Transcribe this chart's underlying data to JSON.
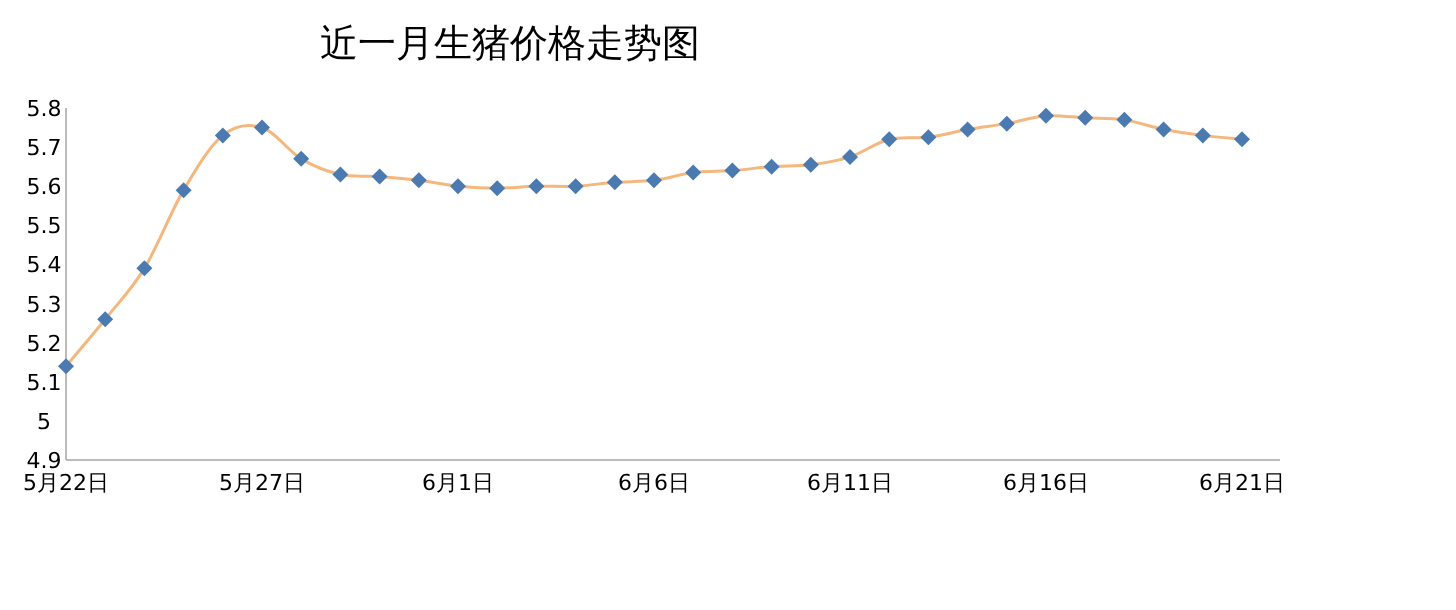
{
  "chart_data": {
    "type": "line",
    "title": "近一月生猪价格走势图",
    "categories": [
      "5月22日",
      null,
      null,
      null,
      null,
      "5月27日",
      null,
      null,
      null,
      null,
      "6月1日",
      null,
      null,
      null,
      null,
      "6月6日",
      null,
      null,
      null,
      null,
      "6月11日",
      null,
      null,
      null,
      null,
      "6月16日",
      null,
      null,
      null,
      null,
      "6月21日"
    ],
    "series": [
      {
        "color": "#f4b77e",
        "colors": [
          "#4a7ab0",
          "#4a7ab0",
          "#4a7ab0",
          "#4a7ab0",
          "#4a7ab0",
          "#4a7ab0",
          "#4a7ab0",
          "#4a7ab0",
          "#4a7ab0",
          "#4a7ab0",
          "#4a7ab0",
          "#4a7ab0",
          "#4a7ab0",
          "#4a7ab0",
          "#4a7ab0",
          "#4a7ab0",
          "#4a7ab0",
          "#4a7ab0",
          "#4a7ab0",
          "#4a7ab0",
          "#4a7ab0",
          "#4a7ab0",
          "#4a7ab0",
          "#4a7ab0",
          "#4a7ab0",
          "#4a7ab0",
          "#4a7ab0",
          "#4a7ab0",
          "#4a7ab0",
          "#4a7ab0",
          "#4a7ab0"
        ],
        "values": [
          5.14,
          5.26,
          5.39,
          5.59,
          5.73,
          5.75,
          5.67,
          5.63,
          5.625,
          5.615,
          5.6,
          5.595,
          5.6,
          5.6,
          5.61,
          5.615,
          5.635,
          5.64,
          5.65,
          5.655,
          5.675,
          5.72,
          5.725,
          5.745,
          5.76,
          5.78,
          5.775,
          5.77,
          5.745,
          5.73,
          5.72
        ]
      }
    ],
    "ylim": [
      4.9,
      5.8
    ],
    "yticks": [
      4.9,
      5,
      5.1,
      5.2,
      5.3,
      5.4,
      5.5,
      5.6,
      5.7,
      5.8
    ],
    "marker": "diamond",
    "line_style": "solid",
    "grid": false
  }
}
